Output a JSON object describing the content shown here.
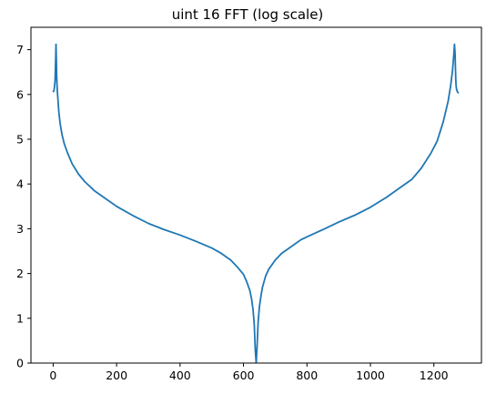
{
  "chart_data": {
    "type": "line",
    "title": "uint 16 FFT (log scale)",
    "xlabel": "",
    "ylabel": "",
    "xlim": [
      -70,
      1350
    ],
    "ylim": [
      0,
      7.5
    ],
    "xticks": [
      0,
      200,
      400,
      600,
      800,
      1000,
      1200
    ],
    "yticks": [
      0,
      1,
      2,
      3,
      4,
      5,
      6,
      7
    ],
    "xtick_labels": [
      "0",
      "200",
      "400",
      "600",
      "800",
      "1000",
      "1200"
    ],
    "ytick_labels": [
      "0",
      "1",
      "2",
      "3",
      "4",
      "5",
      "6",
      "7"
    ],
    "grid": false,
    "legend": "none",
    "series": [
      {
        "color": "#1f77b4",
        "x": [
          0,
          3,
          6,
          8,
          9,
          10,
          11,
          12,
          13,
          15,
          18,
          22,
          28,
          35,
          45,
          60,
          80,
          100,
          130,
          160,
          200,
          250,
          300,
          350,
          400,
          450,
          500,
          530,
          560,
          580,
          600,
          610,
          620,
          625,
          630,
          634,
          637,
          640,
          643,
          646,
          650,
          655,
          660,
          670,
          680,
          700,
          720,
          750,
          780,
          800,
          850,
          900,
          950,
          1000,
          1050,
          1100,
          1130,
          1160,
          1190,
          1210,
          1230,
          1245,
          1253,
          1259,
          1263,
          1265,
          1267,
          1268,
          1269,
          1270,
          1272,
          1275,
          1278
        ],
        "values": [
          6.05,
          6.1,
          6.3,
          6.8,
          7.12,
          6.8,
          6.45,
          6.25,
          6.1,
          5.9,
          5.6,
          5.35,
          5.1,
          4.9,
          4.7,
          4.45,
          4.22,
          4.05,
          3.85,
          3.7,
          3.5,
          3.3,
          3.12,
          2.98,
          2.86,
          2.72,
          2.57,
          2.45,
          2.3,
          2.15,
          1.98,
          1.82,
          1.62,
          1.45,
          1.2,
          0.85,
          0.3,
          0.0,
          0.4,
          0.9,
          1.25,
          1.5,
          1.7,
          1.95,
          2.1,
          2.3,
          2.45,
          2.6,
          2.75,
          2.82,
          2.98,
          3.15,
          3.3,
          3.48,
          3.7,
          3.95,
          4.1,
          4.35,
          4.68,
          4.95,
          5.4,
          5.85,
          6.2,
          6.55,
          6.9,
          7.12,
          6.9,
          6.6,
          6.35,
          6.2,
          6.1,
          6.05,
          6.03
        ]
      }
    ]
  }
}
